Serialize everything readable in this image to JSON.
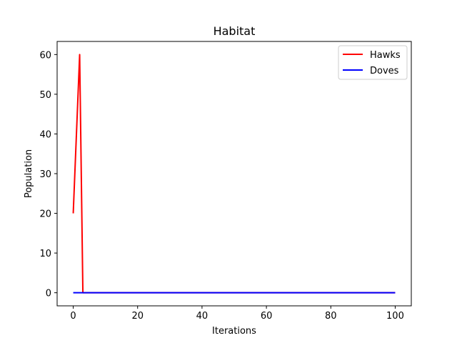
{
  "chart_data": {
    "type": "line",
    "title": "Habitat",
    "xlabel": "Iterations",
    "ylabel": "Population",
    "xlim": [
      -5,
      105
    ],
    "ylim": [
      -3.3,
      63.3
    ],
    "xticks": [
      0,
      20,
      40,
      60,
      80,
      100
    ],
    "yticks": [
      0,
      10,
      20,
      30,
      40,
      50,
      60
    ],
    "grid": false,
    "legend_position": "top-right",
    "series": [
      {
        "name": "Hawks",
        "color": "#ff0000",
        "x": [
          0,
          2,
          3,
          100
        ],
        "y": [
          20,
          60,
          0,
          0
        ]
      },
      {
        "name": "Doves",
        "color": "#0000ff",
        "x": [
          0,
          100
        ],
        "y": [
          0,
          0
        ]
      }
    ]
  }
}
